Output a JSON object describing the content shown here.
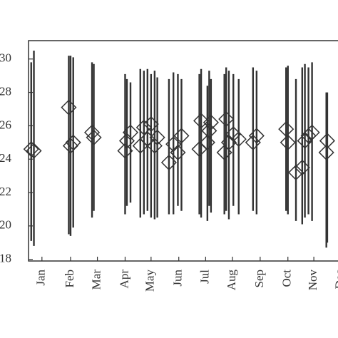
{
  "chart_data": {
    "type": "range-scatter",
    "x": [
      3,
      6,
      45,
      47,
      50,
      71,
      73,
      108,
      110,
      114,
      125,
      129,
      133,
      137,
      141,
      144,
      157,
      162,
      167,
      171,
      191,
      193,
      200,
      202,
      204,
      219,
      221,
      224,
      229,
      235,
      251,
      255,
      288,
      290,
      299,
      306,
      309,
      313,
      317,
      333,
      334
    ],
    "values": [
      24.6,
      24.5,
      27.1,
      24.8,
      25.0,
      25.6,
      25.3,
      24.5,
      25.1,
      25.6,
      24.8,
      25.9,
      25.2,
      26.1,
      24.8,
      25.3,
      23.8,
      24.9,
      24.4,
      25.4,
      24.6,
      26.3,
      25.0,
      25.7,
      26.2,
      24.4,
      26.4,
      25.0,
      25.5,
      25.2,
      25.0,
      25.4,
      25.8,
      25.0,
      23.2,
      23.5,
      25.1,
      25.4,
      25.6,
      24.4,
      25.1
    ],
    "low": [
      19.1,
      18.8,
      19.5,
      19.4,
      19.9,
      20.5,
      20.9,
      20.7,
      21.2,
      21.4,
      20.5,
      20.7,
      20.9,
      20.5,
      20.4,
      20.5,
      20.7,
      20.7,
      21.2,
      20.9,
      20.7,
      20.5,
      20.3,
      21.2,
      20.8,
      20.7,
      20.9,
      20.4,
      21.2,
      20.7,
      20.9,
      20.7,
      20.9,
      20.7,
      20.3,
      20.1,
      20.5,
      20.7,
      20.3,
      18.7,
      19.0
    ],
    "high": [
      29.8,
      30.5,
      30.2,
      30.2,
      30.1,
      29.8,
      29.7,
      29.1,
      28.8,
      28.6,
      29.4,
      29.3,
      29.4,
      29.1,
      29.3,
      28.9,
      28.8,
      29.2,
      29.1,
      28.8,
      29.1,
      29.4,
      28.4,
      29.3,
      28.8,
      29.1,
      29.5,
      29.3,
      29.1,
      28.8,
      29.5,
      29.3,
      29.5,
      29.6,
      28.8,
      29.5,
      29.7,
      29.5,
      29.8,
      28.0,
      28.0
    ],
    "color": "#333333",
    "xlim": [
      0,
      350
    ],
    "xticks": [
      {
        "value": 15,
        "label": "Jan"
      },
      {
        "value": 47,
        "label": "Feb"
      },
      {
        "value": 77,
        "label": "Mar"
      },
      {
        "value": 108,
        "label": "Apr"
      },
      {
        "value": 137,
        "label": "May"
      },
      {
        "value": 168,
        "label": "Jun"
      },
      {
        "value": 198,
        "label": "Jul"
      },
      {
        "value": 228,
        "label": "Aug"
      },
      {
        "value": 259,
        "label": "Sep"
      },
      {
        "value": 290,
        "label": "Oct"
      },
      {
        "value": 319,
        "label": "Nov"
      },
      {
        "value": 349,
        "label": "Dec"
      }
    ],
    "ylim": [
      17.9,
      31.1
    ],
    "yticks": [
      18,
      20,
      22,
      24,
      26,
      28,
      30
    ]
  }
}
